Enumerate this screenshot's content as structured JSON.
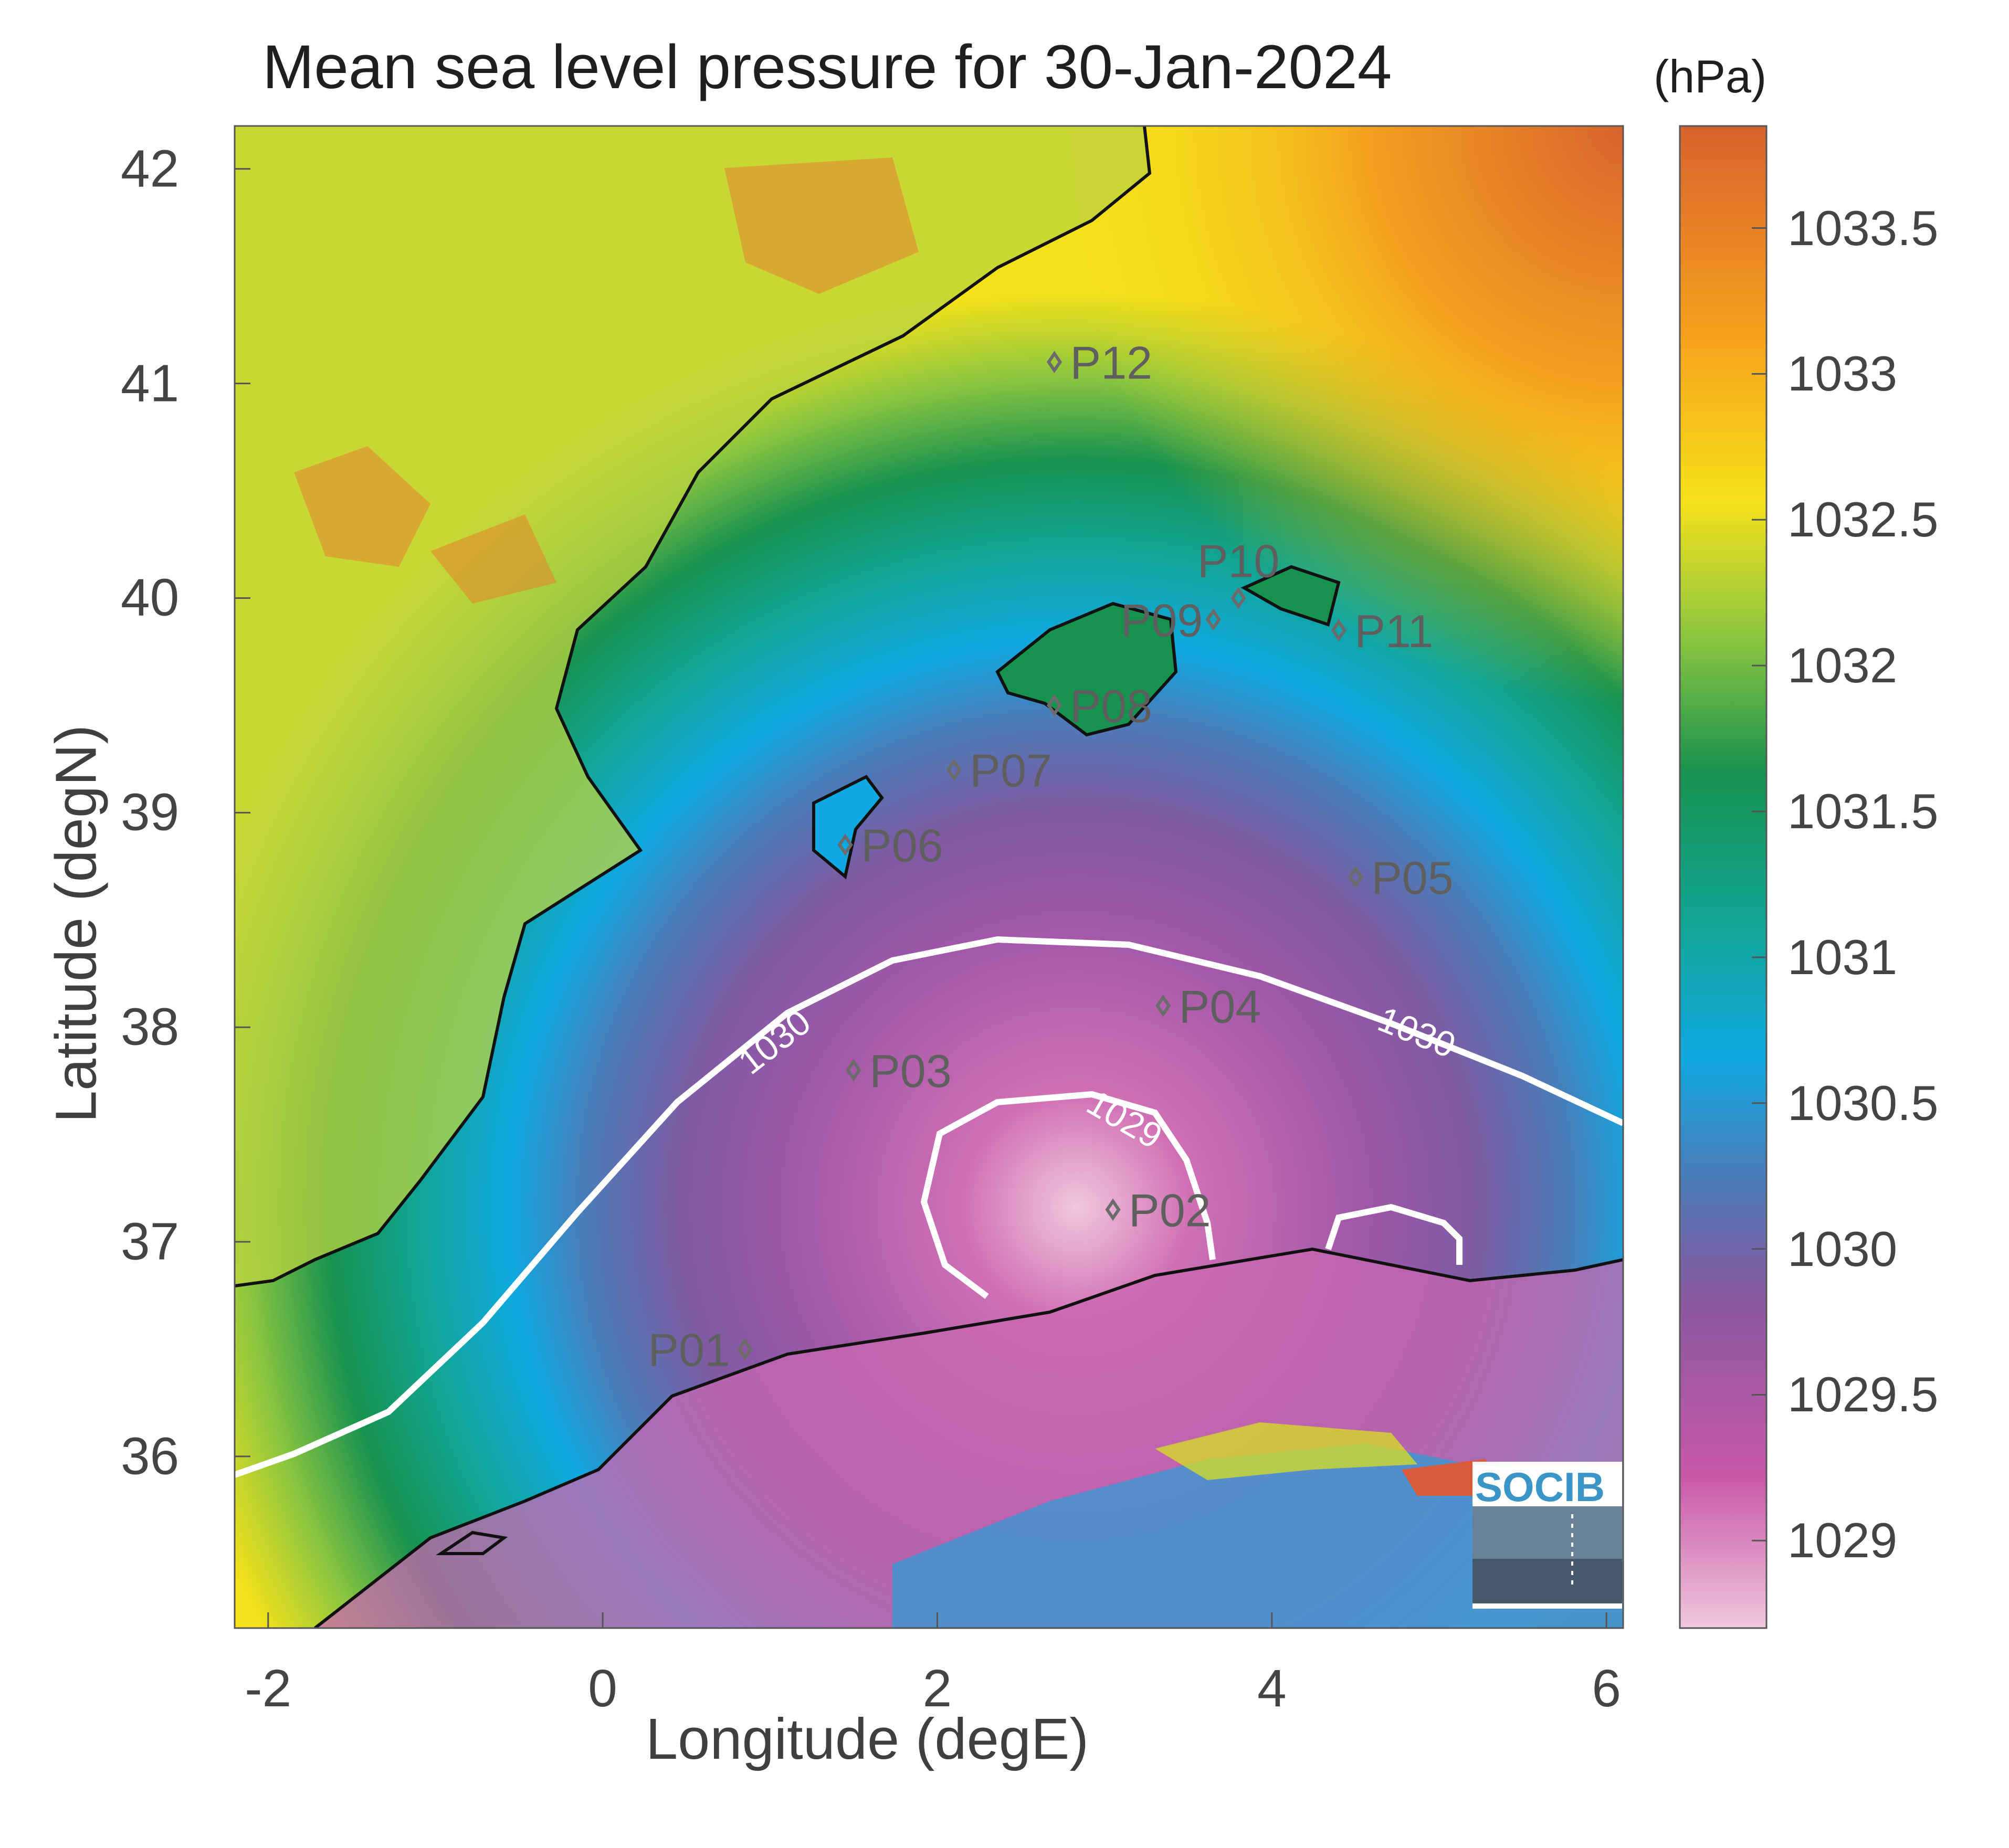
{
  "figure": {
    "title": "Mean sea level pressure for 30-Jan-2024",
    "colorbar_unit": "(hPa)",
    "xlabel": "Longitude (degE)",
    "ylabel": "Latitude (degN)",
    "logo_text": "SOCIB"
  },
  "x_ticks": [
    "-2",
    "0",
    "2",
    "4",
    "6"
  ],
  "y_ticks": [
    "42",
    "41",
    "40",
    "39",
    "38",
    "37",
    "36"
  ],
  "colorbar_ticks": [
    "1033.5",
    "1033",
    "1032.5",
    "1032",
    "1031.5",
    "1031",
    "1030.5",
    "1030",
    "1029.5",
    "1029"
  ],
  "contour_labels": [
    "1030",
    "1030",
    "1029"
  ],
  "stations": [
    {
      "id": "P01",
      "lon": 0.85,
      "lat": 36.5
    },
    {
      "id": "P02",
      "lon": 3.05,
      "lat": 37.15
    },
    {
      "id": "P03",
      "lon": 1.5,
      "lat": 37.8
    },
    {
      "id": "P04",
      "lon": 3.35,
      "lat": 38.1
    },
    {
      "id": "P05",
      "lon": 4.5,
      "lat": 38.7
    },
    {
      "id": "P06",
      "lon": 1.45,
      "lat": 38.85
    },
    {
      "id": "P07",
      "lon": 2.1,
      "lat": 39.2
    },
    {
      "id": "P08",
      "lon": 2.7,
      "lat": 39.5
    },
    {
      "id": "P09",
      "lon": 3.65,
      "lat": 39.9
    },
    {
      "id": "P10",
      "lon": 3.8,
      "lat": 40.0
    },
    {
      "id": "P11",
      "lon": 4.4,
      "lat": 39.85
    },
    {
      "id": "P12",
      "lon": 2.7,
      "lat": 41.1
    }
  ],
  "map_data": {
    "lon_range": [
      -2.2,
      6.1
    ],
    "lat_range": [
      35.2,
      42.2
    ],
    "color_scale_range": [
      1028.7,
      1033.85
    ],
    "colormap": [
      "#f0c8dc",
      "#c858a8",
      "#8858a0",
      "#4a7cb8",
      "#10a8e0",
      "#12a594",
      "#17924f",
      "#8cc63f",
      "#f5e11a",
      "#f6a11c",
      "#d8622d"
    ],
    "contour_levels": [
      1030,
      1029
    ],
    "pressure_minimum_lon": 2.3,
    "pressure_minimum_lat": 37.2
  }
}
